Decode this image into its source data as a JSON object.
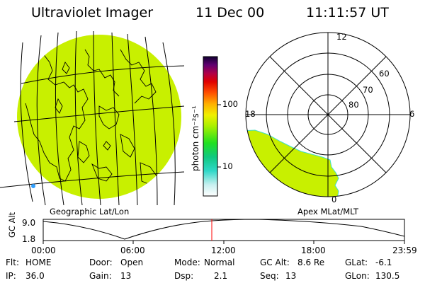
{
  "header": {
    "title": "Ultraviolet Imager",
    "date": "11 Dec 00",
    "time": "11:11:57 UT"
  },
  "colorbar": {
    "label": "photon cm⁻²s⁻¹",
    "ticks": [
      "100",
      "10"
    ],
    "scale": "log"
  },
  "left_panel": {
    "caption": "Geographic Lat/Lon",
    "fill_color": "#c8f000"
  },
  "right_panel": {
    "caption": "Apex MLat/MLT",
    "mlt_labels": [
      "12",
      "18",
      "6",
      "0"
    ],
    "lat_labels": [
      "60",
      "70",
      "80"
    ],
    "fill_color": "#c8f000"
  },
  "timeline": {
    "ylabel": "GC Alt",
    "yticks": [
      "9.0",
      "1.8"
    ],
    "xticks": [
      "00:00",
      "06:00",
      "12:00",
      "18:00",
      "23:59"
    ],
    "current_time_hours": 11.2
  },
  "info": {
    "flt_label": "Flt:",
    "flt_value": "HOME",
    "ip_label": "IP:",
    "ip_value": "36.0",
    "door_label": "Door:",
    "door_value": "Open",
    "gain_label": "Gain:",
    "gain_value": "13",
    "mode_label": "Mode:",
    "mode_value": "Normal",
    "dsp_label": "Dsp:",
    "dsp_value": "2.1",
    "gcalt_label": "GC Alt:",
    "gcalt_value": "8.6 Re",
    "seq_label": "Seq:",
    "seq_value": "13",
    "glat_label": "GLat:",
    "glat_value": "-6.1",
    "glon_label": "GLon:",
    "glon_value": "130.5"
  },
  "colors": {
    "auroral_fill": "#c8f000",
    "time_marker": "#ff0000"
  }
}
